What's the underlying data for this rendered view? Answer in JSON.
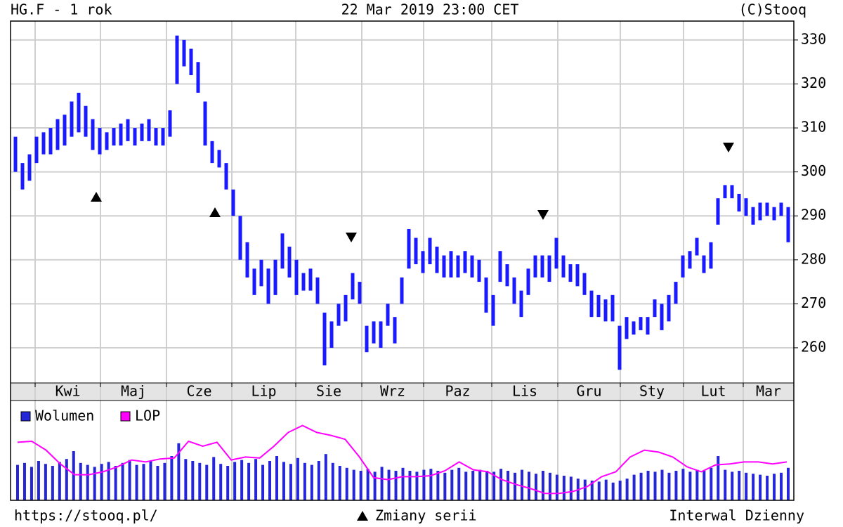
{
  "chart_data": {
    "type": "ohlc",
    "title": "HG.F - 1 rok",
    "subtitle": "22 Mar 2019 23:00 CET",
    "source": "(C)Stooq",
    "footer_left": "https://stooq.pl/",
    "footer_center": "Zmiany serii",
    "footer_right": "Interwal Dzienny",
    "months": [
      "Kwi",
      "Maj",
      "Cze",
      "Lip",
      "Sie",
      "Wrz",
      "Paz",
      "Lis",
      "Gru",
      "Sty",
      "Lut",
      "Mar"
    ],
    "color": "#1a1aff",
    "ylim": [
      252,
      334.3
    ],
    "yticks": [
      260,
      270,
      280,
      290,
      300,
      310,
      320,
      330
    ],
    "grid": true,
    "low": [
      300,
      296,
      298,
      302,
      304,
      304,
      305,
      306,
      308,
      309,
      308,
      305,
      304,
      305,
      306,
      306,
      307,
      306,
      307,
      307,
      306,
      306,
      308,
      320,
      324,
      322,
      318,
      306,
      302,
      301,
      296,
      290,
      280,
      276,
      272,
      274,
      270,
      272,
      278,
      276,
      272,
      273,
      273,
      270,
      256,
      260,
      265,
      266,
      271,
      270,
      259,
      261,
      260,
      265,
      261,
      270,
      278,
      279,
      277,
      279,
      277,
      276,
      276,
      276,
      277,
      276,
      275,
      268,
      265,
      275,
      274,
      270,
      267,
      272,
      276,
      276,
      275,
      278,
      276,
      275,
      274,
      272,
      267,
      267,
      266,
      266,
      255,
      262,
      263,
      264,
      263,
      267,
      264,
      266,
      270,
      276,
      278,
      281,
      277,
      278,
      288,
      294,
      294,
      291,
      290,
      288,
      289,
      290,
      289,
      290,
      284
    ],
    "high": [
      308,
      302,
      304,
      308,
      309,
      310,
      312,
      313,
      316,
      318,
      315,
      312,
      310,
      309,
      310,
      311,
      312,
      310,
      311,
      312,
      310,
      310,
      314,
      331,
      330,
      328,
      325,
      316,
      307,
      305,
      302,
      296,
      290,
      284,
      278,
      280,
      278,
      280,
      286,
      283,
      280,
      277,
      278,
      276,
      268,
      266,
      270,
      272,
      277,
      275,
      265,
      266,
      266,
      270,
      267,
      276,
      287,
      285,
      282,
      285,
      283,
      281,
      282,
      281,
      282,
      281,
      280,
      276,
      272,
      282,
      279,
      276,
      273,
      278,
      281,
      281,
      281,
      285,
      281,
      279,
      279,
      277,
      273,
      272,
      271,
      272,
      265,
      267,
      266,
      267,
      267,
      271,
      270,
      272,
      275,
      281,
      282,
      285,
      281,
      284,
      294,
      297,
      297,
      295,
      294,
      292,
      293,
      293,
      292,
      293,
      292
    ],
    "volume": {
      "name": "Wolumen",
      "color": "#2626d9",
      "values": [
        36,
        38,
        34,
        40,
        37,
        35,
        39,
        42,
        50,
        38,
        36,
        34,
        37,
        39,
        35,
        38,
        41,
        36,
        37,
        40,
        35,
        38,
        45,
        58,
        42,
        40,
        38,
        36,
        44,
        37,
        35,
        39,
        41,
        38,
        42,
        36,
        40,
        45,
        39,
        37,
        43,
        38,
        36,
        40,
        47,
        38,
        35,
        33,
        31,
        30,
        32,
        29,
        34,
        31,
        30,
        33,
        30,
        29,
        31,
        32,
        30,
        28,
        31,
        33,
        29,
        30,
        31,
        30,
        29,
        32,
        30,
        28,
        31,
        29,
        27,
        30,
        28,
        26,
        25,
        24,
        22,
        21,
        20,
        19,
        21,
        18,
        20,
        22,
        26,
        28,
        30,
        29,
        31,
        28,
        30,
        32,
        29,
        31,
        30,
        33,
        45,
        31,
        29,
        30,
        28,
        27,
        26,
        25,
        27,
        28,
        33
      ]
    },
    "lop": {
      "name": "LOP",
      "color": "#ff00ff",
      "values": [
        59,
        60,
        51,
        37,
        26,
        26,
        29,
        34,
        41,
        39,
        42,
        43,
        60,
        55,
        59,
        41,
        44,
        43,
        55,
        69,
        76,
        69,
        66,
        62,
        44,
        23,
        21,
        24,
        24,
        25,
        30,
        39,
        31,
        29,
        21,
        16,
        12,
        7,
        7,
        9,
        14,
        24,
        29,
        44,
        51,
        49,
        44,
        34,
        29,
        36,
        37,
        39,
        39,
        37,
        39
      ]
    },
    "volume_ylim": [
      0,
      100
    ]
  }
}
